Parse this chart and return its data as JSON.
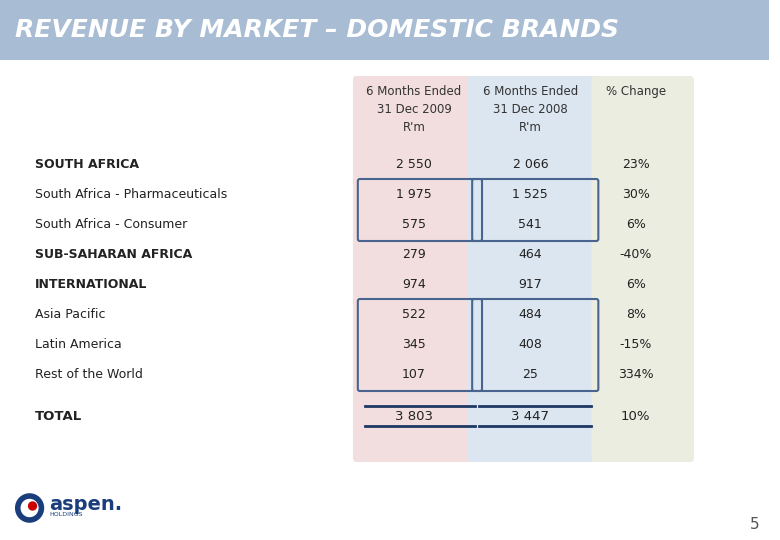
{
  "title": "REVENUE BY MARKET – DOMESTIC BRANDS",
  "page_bg_color": "#ffffff",
  "header_bg_color": "#a8bcd4",
  "col1_header": "6 Months Ended\n31 Dec 2009\nR'm",
  "col2_header": "6 Months Ended\n31 Dec 2008\nR'm",
  "col3_header": "% Change",
  "col1_bg": "#f2dede",
  "col2_bg": "#dce6f1",
  "col3_bg": "#ebede0",
  "box_border_color": "#4a6490",
  "total_line_color": "#1f3864",
  "rows": [
    {
      "label": "SOUTH AFRICA",
      "bold": true,
      "v2009": "2 550",
      "v2008": "2 066",
      "pct": "23%",
      "boxed": false
    },
    {
      "label": "South Africa - Pharmaceuticals",
      "bold": false,
      "v2009": "1 975",
      "v2008": "1 525",
      "pct": "30%",
      "boxed": true
    },
    {
      "label": "South Africa - Consumer",
      "bold": false,
      "v2009": "575",
      "v2008": "541",
      "pct": "6%",
      "boxed": true
    },
    {
      "label": "SUB-SAHARAN AFRICA",
      "bold": true,
      "v2009": "279",
      "v2008": "464",
      "pct": "-40%",
      "boxed": false
    },
    {
      "label": "INTERNATIONAL",
      "bold": true,
      "v2009": "974",
      "v2008": "917",
      "pct": "6%",
      "boxed": false
    },
    {
      "label": "Asia Pacific",
      "bold": false,
      "v2009": "522",
      "v2008": "484",
      "pct": "8%",
      "boxed": true
    },
    {
      "label": "Latin America",
      "bold": false,
      "v2009": "345",
      "v2008": "408",
      "pct": "-15%",
      "boxed": true
    },
    {
      "label": "Rest of the World",
      "bold": false,
      "v2009": "107",
      "v2008": "25",
      "pct": "334%",
      "boxed": true
    }
  ],
  "total_label": "TOTAL",
  "total_v2009": "3 803",
  "total_v2008": "3 447",
  "total_pct": "10%",
  "page_number": "5",
  "logo_circle_color": "#1a3d7c",
  "logo_dot_color": "#cc0000",
  "logo_text_color": "#1a3d7c",
  "logo_main_text": "aspen.",
  "logo_sub_text": "HOLDINGS"
}
